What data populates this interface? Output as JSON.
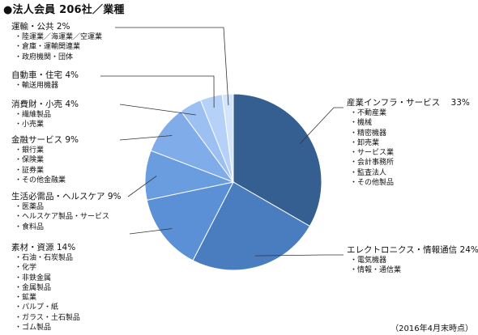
{
  "title": "●法人会員 206社／業種",
  "footnote": "（2016年4月末時点）",
  "chart_data": {
    "type": "pie",
    "start_angle_deg": 0,
    "direction": "clockwise",
    "slices": [
      {
        "name": "産業インフラ・サービス",
        "value": 33,
        "value_label": "33%",
        "color": "#365f91",
        "items": [
          "不動産業",
          "機械",
          "精密機器",
          "卸売業",
          "サービス業",
          "会計事務所",
          "監査法人",
          "その他製品"
        ]
      },
      {
        "name": "エレクトロニクス・情報通信",
        "value": 24,
        "value_label": "24%",
        "color": "#4a7cc0",
        "items": [
          "電気機器",
          "情報・通信業"
        ]
      },
      {
        "name": "素材・資源",
        "value": 14,
        "value_label": "14%",
        "color": "#5b8fd6",
        "items": [
          "石油・石炭製品",
          "化学",
          "非鉄金属",
          "金属製品",
          "鉱業",
          "パルプ・紙",
          "ガラス・土石製品",
          "ゴム製品"
        ]
      },
      {
        "name": "生活必需品・ヘルスケア",
        "value": 9,
        "value_label": "9%",
        "color": "#6a9de0",
        "items": [
          "医薬品",
          "ヘルスケア製品・サービス",
          "食料品"
        ]
      },
      {
        "name": "金融サービス",
        "value": 9,
        "value_label": "9%",
        "color": "#80acea",
        "items": [
          "銀行業",
          "保険業",
          "証券業",
          "その他金融業"
        ]
      },
      {
        "name": "消費財・小売",
        "value": 4,
        "value_label": "4%",
        "color": "#9cc0f2",
        "items": [
          "繊維製品",
          "小売業"
        ]
      },
      {
        "name": "自動車・住宅",
        "value": 4,
        "value_label": "4%",
        "color": "#b6d1f7",
        "items": [
          "輸送用機器"
        ]
      },
      {
        "name": "運輸・公共",
        "value": 2,
        "value_label": "2%",
        "color": "#d4e4fb",
        "items": [
          "陸運業／海運業／空運業",
          "倉庫・運輸関連業",
          "政府機関・団体"
        ]
      }
    ]
  }
}
